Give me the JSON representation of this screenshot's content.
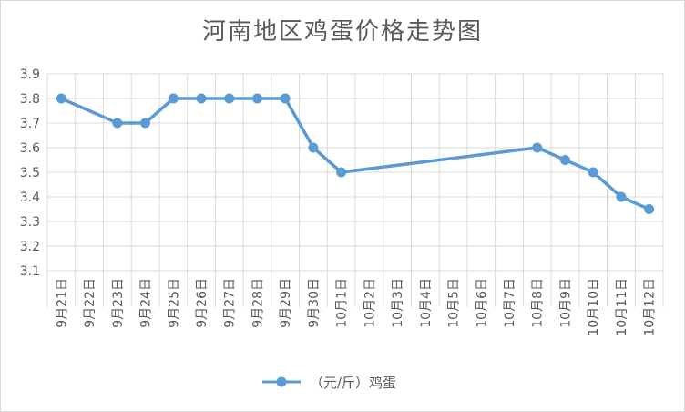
{
  "chart_data": {
    "type": "line",
    "title": "河南地区鸡蛋价格走势图",
    "categories": [
      "9月21日",
      "9月22日",
      "9月23日",
      "9月24日",
      "9月25日",
      "9月26日",
      "9月27日",
      "9月28日",
      "9月29日",
      "9月30日",
      "10月1日",
      "10月2日",
      "10月3日",
      "10月4日",
      "10月5日",
      "10月6日",
      "10月7日",
      "10月8日",
      "10月9日",
      "10月10日",
      "10月11日",
      "10月12日"
    ],
    "series": [
      {
        "name": "（元/斤）鸡蛋",
        "values": [
          3.8,
          null,
          3.7,
          3.7,
          3.8,
          3.8,
          3.8,
          3.8,
          3.8,
          3.6,
          3.5,
          null,
          null,
          null,
          null,
          null,
          null,
          3.6,
          3.55,
          3.5,
          3.4,
          3.35
        ],
        "color": "#5b9bd5"
      }
    ],
    "ylim": [
      3.1,
      3.9
    ],
    "yticks": [
      "3.1",
      "3.2",
      "3.3",
      "3.4",
      "3.5",
      "3.6",
      "3.7",
      "3.8",
      "3.9"
    ],
    "grid": true,
    "legend": "bottom"
  }
}
